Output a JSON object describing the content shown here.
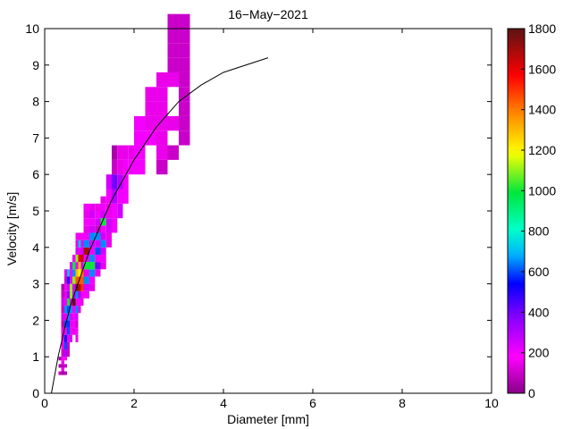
{
  "chart_data": {
    "type": "heatmap",
    "title": "16−May−2021",
    "xlabel": "Diameter [mm]",
    "ylabel": "Velocity [m/s]",
    "xlim": [
      0,
      10
    ],
    "ylim": [
      0,
      10
    ],
    "xticks": [
      "0",
      "2",
      "4",
      "6",
      "8",
      "10"
    ],
    "yticks": [
      "0",
      "1",
      "2",
      "3",
      "4",
      "5",
      "6",
      "7",
      "8",
      "9",
      "10"
    ],
    "colorbar": {
      "min": 0,
      "max": 1800,
      "ticks": [
        "0",
        "200",
        "400",
        "600",
        "800",
        "1000",
        "1200",
        "1400",
        "1600",
        "1800"
      ],
      "colormap": "hsv-like (purple-magenta-blue-cyan-green-yellow-red-darkred)"
    },
    "cells_columns": [
      "x0_mm",
      "x1_mm",
      "y0_ms",
      "y1_ms",
      "count"
    ],
    "cells": [
      [
        0.31,
        0.37,
        0.5,
        0.6,
        100
      ],
      [
        0.31,
        0.37,
        0.7,
        0.8,
        50
      ],
      [
        0.31,
        0.37,
        0.9,
        1.0,
        50
      ],
      [
        0.37,
        0.44,
        0.5,
        0.6,
        50
      ],
      [
        0.37,
        0.44,
        0.6,
        0.7,
        150
      ],
      [
        0.37,
        0.44,
        0.7,
        0.8,
        80
      ],
      [
        0.37,
        0.44,
        0.8,
        0.9,
        150
      ],
      [
        0.37,
        0.44,
        0.9,
        1.0,
        180
      ],
      [
        0.37,
        0.44,
        1.0,
        1.2,
        100
      ],
      [
        0.37,
        0.44,
        1.2,
        1.4,
        150
      ],
      [
        0.37,
        0.44,
        1.4,
        1.6,
        200
      ],
      [
        0.37,
        0.44,
        1.6,
        1.8,
        150
      ],
      [
        0.37,
        0.44,
        1.8,
        2.0,
        80
      ],
      [
        0.37,
        0.44,
        2.0,
        2.2,
        250
      ],
      [
        0.37,
        0.44,
        2.2,
        2.4,
        100
      ],
      [
        0.37,
        0.44,
        2.4,
        2.6,
        250
      ],
      [
        0.37,
        0.44,
        2.6,
        2.8,
        100
      ],
      [
        0.37,
        0.44,
        2.8,
        3.0,
        60
      ],
      [
        0.44,
        0.5,
        0.5,
        0.6,
        80
      ],
      [
        0.44,
        0.5,
        0.7,
        0.8,
        100
      ],
      [
        0.44,
        0.5,
        0.9,
        1.0,
        180
      ],
      [
        0.44,
        0.5,
        1.0,
        1.2,
        300
      ],
      [
        0.44,
        0.5,
        1.2,
        1.4,
        600
      ],
      [
        0.44,
        0.5,
        1.4,
        1.6,
        550
      ],
      [
        0.44,
        0.5,
        1.6,
        1.8,
        200
      ],
      [
        0.44,
        0.5,
        1.8,
        2.0,
        600
      ],
      [
        0.44,
        0.5,
        2.0,
        2.2,
        150
      ],
      [
        0.44,
        0.5,
        2.2,
        2.4,
        650
      ],
      [
        0.44,
        0.5,
        2.4,
        2.6,
        200
      ],
      [
        0.44,
        0.5,
        2.6,
        2.8,
        150
      ],
      [
        0.44,
        0.5,
        2.8,
        3.0,
        200
      ],
      [
        0.44,
        0.5,
        3.0,
        3.2,
        100
      ],
      [
        0.44,
        0.5,
        3.2,
        3.4,
        150
      ],
      [
        0.5,
        0.56,
        1.0,
        1.2,
        100
      ],
      [
        0.5,
        0.56,
        1.2,
        1.4,
        100
      ],
      [
        0.5,
        0.56,
        1.4,
        1.6,
        200
      ],
      [
        0.5,
        0.56,
        1.6,
        1.8,
        600
      ],
      [
        0.5,
        0.56,
        1.8,
        2.0,
        580
      ],
      [
        0.5,
        0.56,
        2.0,
        2.2,
        650
      ],
      [
        0.5,
        0.56,
        2.2,
        2.4,
        600
      ],
      [
        0.5,
        0.56,
        2.4,
        2.6,
        1000
      ],
      [
        0.5,
        0.56,
        2.6,
        2.8,
        350
      ],
      [
        0.5,
        0.56,
        2.8,
        3.0,
        250
      ],
      [
        0.5,
        0.56,
        3.0,
        3.2,
        500
      ],
      [
        0.5,
        0.56,
        3.2,
        3.4,
        700
      ],
      [
        0.56,
        0.62,
        1.4,
        1.6,
        250
      ],
      [
        0.56,
        0.62,
        1.6,
        1.8,
        200
      ],
      [
        0.56,
        0.62,
        1.8,
        2.0,
        150
      ],
      [
        0.56,
        0.62,
        2.0,
        2.2,
        250
      ],
      [
        0.56,
        0.62,
        2.2,
        2.4,
        650
      ],
      [
        0.56,
        0.62,
        2.4,
        2.6,
        150
      ],
      [
        0.56,
        0.62,
        2.6,
        2.8,
        1100
      ],
      [
        0.56,
        0.62,
        2.8,
        3.0,
        1100
      ],
      [
        0.56,
        0.62,
        3.0,
        3.2,
        150
      ],
      [
        0.56,
        0.62,
        3.2,
        3.4,
        200
      ],
      [
        0.56,
        0.62,
        3.4,
        3.6,
        250
      ],
      [
        0.62,
        0.69,
        1.6,
        1.8,
        150
      ],
      [
        0.62,
        0.69,
        1.8,
        2.0,
        200
      ],
      [
        0.62,
        0.69,
        2.0,
        2.2,
        200
      ],
      [
        0.62,
        0.69,
        2.2,
        2.4,
        180
      ],
      [
        0.62,
        0.69,
        2.4,
        2.6,
        1800
      ],
      [
        0.62,
        0.69,
        2.6,
        2.8,
        250
      ],
      [
        0.62,
        0.69,
        2.8,
        3.0,
        250
      ],
      [
        0.62,
        0.69,
        3.0,
        3.2,
        1100
      ],
      [
        0.62,
        0.69,
        3.2,
        3.4,
        650
      ],
      [
        0.62,
        0.69,
        3.4,
        3.6,
        1000
      ],
      [
        0.62,
        0.69,
        3.6,
        3.8,
        200
      ],
      [
        0.69,
        0.75,
        1.4,
        1.6,
        150
      ],
      [
        0.69,
        0.75,
        1.6,
        1.8,
        200
      ],
      [
        0.69,
        0.75,
        1.8,
        2.0,
        100
      ],
      [
        0.69,
        0.75,
        2.0,
        2.2,
        250
      ],
      [
        0.69,
        0.75,
        2.2,
        2.4,
        650
      ],
      [
        0.69,
        0.75,
        2.4,
        2.6,
        200
      ],
      [
        0.69,
        0.75,
        2.6,
        2.8,
        650
      ],
      [
        0.69,
        0.75,
        2.8,
        3.0,
        1800
      ],
      [
        0.69,
        0.75,
        3.0,
        3.2,
        1450
      ],
      [
        0.69,
        0.75,
        3.2,
        3.4,
        1300
      ],
      [
        0.69,
        0.75,
        3.4,
        3.6,
        200
      ],
      [
        0.69,
        0.75,
        3.6,
        3.8,
        1100
      ],
      [
        0.69,
        0.75,
        3.8,
        4.0,
        250
      ],
      [
        0.69,
        0.75,
        4.0,
        4.2,
        150
      ],
      [
        0.69,
        0.75,
        4.2,
        4.4,
        200
      ],
      [
        0.75,
        0.81,
        2.2,
        2.4,
        150
      ],
      [
        0.75,
        0.81,
        2.4,
        2.6,
        200
      ],
      [
        0.75,
        0.81,
        2.6,
        2.8,
        300
      ],
      [
        0.75,
        0.81,
        2.8,
        3.0,
        1650
      ],
      [
        0.75,
        0.81,
        3.0,
        3.2,
        1450
      ],
      [
        0.75,
        0.81,
        3.2,
        3.4,
        1200
      ],
      [
        0.75,
        0.81,
        3.4,
        3.6,
        1300
      ],
      [
        0.75,
        0.81,
        3.6,
        3.8,
        1600
      ],
      [
        0.75,
        0.81,
        3.8,
        4.0,
        150
      ],
      [
        0.75,
        0.81,
        4.0,
        4.2,
        700
      ],
      [
        0.75,
        0.81,
        4.2,
        4.4,
        150
      ],
      [
        0.81,
        0.87,
        2.4,
        2.6,
        150
      ],
      [
        0.81,
        0.87,
        2.6,
        2.8,
        200
      ],
      [
        0.81,
        0.87,
        2.8,
        3.0,
        1500
      ],
      [
        0.81,
        0.87,
        3.0,
        3.2,
        1450
      ],
      [
        0.81,
        0.87,
        3.2,
        3.4,
        1400
      ],
      [
        0.81,
        0.87,
        3.4,
        3.6,
        250
      ],
      [
        0.81,
        0.87,
        3.6,
        3.8,
        1650
      ],
      [
        0.81,
        0.87,
        3.8,
        4.0,
        250
      ],
      [
        0.81,
        0.87,
        4.0,
        4.2,
        150
      ],
      [
        0.81,
        0.87,
        4.2,
        4.4,
        200
      ],
      [
        0.87,
        1.0,
        2.6,
        2.8,
        200
      ],
      [
        0.87,
        1.0,
        2.8,
        3.0,
        250
      ],
      [
        0.87,
        1.0,
        3.0,
        3.2,
        650
      ],
      [
        0.87,
        1.0,
        3.2,
        3.4,
        150
      ],
      [
        0.87,
        1.0,
        3.4,
        3.6,
        1000
      ],
      [
        0.87,
        1.0,
        3.6,
        3.8,
        200
      ],
      [
        0.87,
        1.0,
        3.8,
        4.0,
        1700
      ],
      [
        0.87,
        1.0,
        4.0,
        4.2,
        650
      ],
      [
        0.87,
        1.0,
        4.2,
        4.4,
        200
      ],
      [
        0.87,
        1.0,
        4.4,
        4.6,
        150
      ],
      [
        0.87,
        1.0,
        4.6,
        4.8,
        200
      ],
      [
        0.87,
        1.0,
        4.8,
        5.0,
        150
      ],
      [
        0.87,
        1.0,
        5.0,
        5.2,
        200
      ],
      [
        1.0,
        1.125,
        2.8,
        3.0,
        150
      ],
      [
        1.0,
        1.125,
        3.0,
        3.2,
        200
      ],
      [
        1.0,
        1.125,
        3.2,
        3.4,
        650
      ],
      [
        1.0,
        1.125,
        3.4,
        3.6,
        1000
      ],
      [
        1.0,
        1.125,
        3.6,
        3.8,
        650
      ],
      [
        1.0,
        1.125,
        3.8,
        4.0,
        200
      ],
      [
        1.0,
        1.125,
        4.0,
        4.2,
        250
      ],
      [
        1.0,
        1.125,
        4.2,
        4.4,
        650
      ],
      [
        1.0,
        1.125,
        4.4,
        4.6,
        250
      ],
      [
        1.0,
        1.125,
        4.6,
        4.8,
        200
      ],
      [
        1.0,
        1.125,
        4.8,
        5.0,
        250
      ],
      [
        1.0,
        1.125,
        5.0,
        5.2,
        150
      ],
      [
        1.125,
        1.25,
        3.2,
        3.4,
        150
      ],
      [
        1.125,
        1.25,
        3.4,
        3.6,
        400
      ],
      [
        1.125,
        1.25,
        3.6,
        3.8,
        200
      ],
      [
        1.125,
        1.25,
        3.8,
        4.0,
        600
      ],
      [
        1.125,
        1.25,
        4.0,
        4.2,
        250
      ],
      [
        1.125,
        1.25,
        4.2,
        4.4,
        650
      ],
      [
        1.125,
        1.25,
        4.4,
        4.6,
        100
      ],
      [
        1.125,
        1.25,
        4.6,
        4.8,
        250
      ],
      [
        1.125,
        1.25,
        4.8,
        5.0,
        200
      ],
      [
        1.125,
        1.25,
        5.0,
        5.2,
        150
      ],
      [
        1.25,
        1.375,
        3.4,
        3.6,
        150
      ],
      [
        1.25,
        1.375,
        3.6,
        3.8,
        200
      ],
      [
        1.25,
        1.375,
        3.8,
        4.0,
        250
      ],
      [
        1.25,
        1.375,
        4.0,
        4.2,
        650
      ],
      [
        1.25,
        1.375,
        4.2,
        4.4,
        250
      ],
      [
        1.25,
        1.375,
        4.4,
        4.6,
        200
      ],
      [
        1.25,
        1.375,
        4.6,
        4.8,
        1000
      ],
      [
        1.25,
        1.375,
        4.8,
        5.0,
        250
      ],
      [
        1.25,
        1.375,
        5.0,
        5.2,
        200
      ],
      [
        1.25,
        1.375,
        5.2,
        5.4,
        150
      ],
      [
        1.375,
        1.5,
        4.0,
        4.4,
        150
      ],
      [
        1.375,
        1.5,
        4.4,
        4.8,
        250
      ],
      [
        1.375,
        1.5,
        4.8,
        5.2,
        150
      ],
      [
        1.375,
        1.5,
        5.2,
        5.6,
        200
      ],
      [
        1.375,
        1.5,
        5.6,
        6.0,
        250
      ],
      [
        1.5,
        1.625,
        4.4,
        4.8,
        200
      ],
      [
        1.5,
        1.625,
        4.8,
        5.2,
        200
      ],
      [
        1.5,
        1.625,
        5.2,
        5.6,
        300
      ],
      [
        1.5,
        1.625,
        5.6,
        6.0,
        400
      ],
      [
        1.5,
        1.625,
        6.0,
        6.4,
        100
      ],
      [
        1.5,
        1.625,
        6.4,
        6.8,
        50
      ],
      [
        1.625,
        1.75,
        4.8,
        5.2,
        250
      ],
      [
        1.625,
        1.75,
        5.2,
        5.6,
        200
      ],
      [
        1.625,
        1.75,
        5.6,
        6.0,
        300
      ],
      [
        1.625,
        1.75,
        6.0,
        6.4,
        150
      ],
      [
        1.625,
        1.75,
        6.4,
        6.8,
        150
      ],
      [
        1.75,
        1.875,
        5.2,
        5.6,
        200
      ],
      [
        1.75,
        1.875,
        5.6,
        6.0,
        200
      ],
      [
        1.75,
        1.875,
        6.0,
        6.4,
        200
      ],
      [
        1.75,
        1.875,
        6.4,
        6.8,
        150
      ],
      [
        1.875,
        2.0,
        6.0,
        6.4,
        200
      ],
      [
        1.875,
        2.0,
        6.4,
        6.8,
        150
      ],
      [
        2.0,
        2.25,
        6.0,
        6.4,
        200
      ],
      [
        2.0,
        2.25,
        6.4,
        6.8,
        200
      ],
      [
        2.0,
        2.25,
        6.8,
        7.2,
        200
      ],
      [
        2.0,
        2.25,
        7.2,
        7.6,
        200
      ],
      [
        2.25,
        2.5,
        6.8,
        7.2,
        200
      ],
      [
        2.25,
        2.5,
        7.2,
        7.6,
        150
      ],
      [
        2.25,
        2.5,
        7.6,
        8.0,
        150
      ],
      [
        2.25,
        2.5,
        8.0,
        8.4,
        150
      ],
      [
        2.5,
        2.75,
        6.0,
        6.4,
        100
      ],
      [
        2.5,
        2.75,
        6.4,
        6.8,
        150
      ],
      [
        2.5,
        2.75,
        6.8,
        7.2,
        150
      ],
      [
        2.5,
        2.75,
        7.2,
        7.6,
        150
      ],
      [
        2.5,
        2.75,
        7.6,
        8.0,
        150
      ],
      [
        2.5,
        2.75,
        8.0,
        8.4,
        150
      ],
      [
        2.5,
        2.75,
        8.4,
        8.8,
        150
      ],
      [
        2.75,
        3.0,
        6.4,
        6.8,
        100
      ],
      [
        2.75,
        3.0,
        7.2,
        7.6,
        150
      ],
      [
        2.75,
        3.0,
        8.4,
        8.8,
        150
      ],
      [
        2.75,
        3.0,
        8.8,
        9.2,
        100
      ],
      [
        2.75,
        3.0,
        9.2,
        9.6,
        100
      ],
      [
        2.75,
        3.0,
        9.6,
        10.0,
        100
      ],
      [
        2.75,
        3.0,
        10.0,
        10.4,
        100
      ],
      [
        3.0,
        3.25,
        6.8,
        7.2,
        100
      ],
      [
        3.0,
        3.25,
        7.2,
        7.6,
        100
      ],
      [
        3.0,
        3.25,
        7.6,
        8.0,
        100
      ],
      [
        3.0,
        3.25,
        8.0,
        8.4,
        100
      ],
      [
        3.0,
        3.25,
        8.4,
        8.8,
        100
      ],
      [
        3.0,
        3.25,
        8.8,
        9.2,
        100
      ],
      [
        3.0,
        3.25,
        9.2,
        9.6,
        100
      ],
      [
        3.0,
        3.25,
        9.6,
        10.0,
        100
      ],
      [
        3.0,
        3.25,
        10.0,
        10.4,
        100
      ]
    ],
    "fit_line": {
      "x": [
        0.15,
        0.3,
        0.45,
        0.6,
        0.8,
        1.0,
        1.25,
        1.5,
        2.0,
        2.5,
        3.0,
        3.5,
        4.0,
        5.0
      ],
      "y": [
        0.0,
        1.0,
        1.8,
        2.5,
        3.2,
        3.9,
        4.6,
        5.3,
        6.4,
        7.3,
        8.0,
        8.45,
        8.8,
        9.2
      ]
    }
  }
}
